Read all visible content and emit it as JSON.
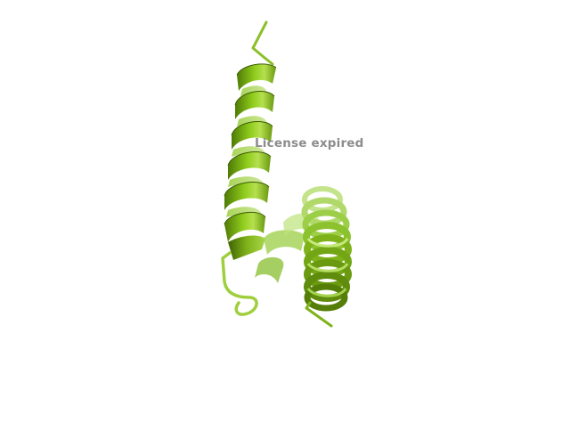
{
  "viewer": {
    "watermark": "License expired",
    "background_color": "#ffffff",
    "ribbon_color": "#7fb21a",
    "ribbon_dark": "#4a6e08",
    "ribbon_light": "#b7e25a",
    "coil_color": "#8cbf2a"
  },
  "structure": {
    "representation": "cartoon",
    "secondary_elements": [
      "helix",
      "coil",
      "helix",
      "coil",
      "helix"
    ]
  }
}
